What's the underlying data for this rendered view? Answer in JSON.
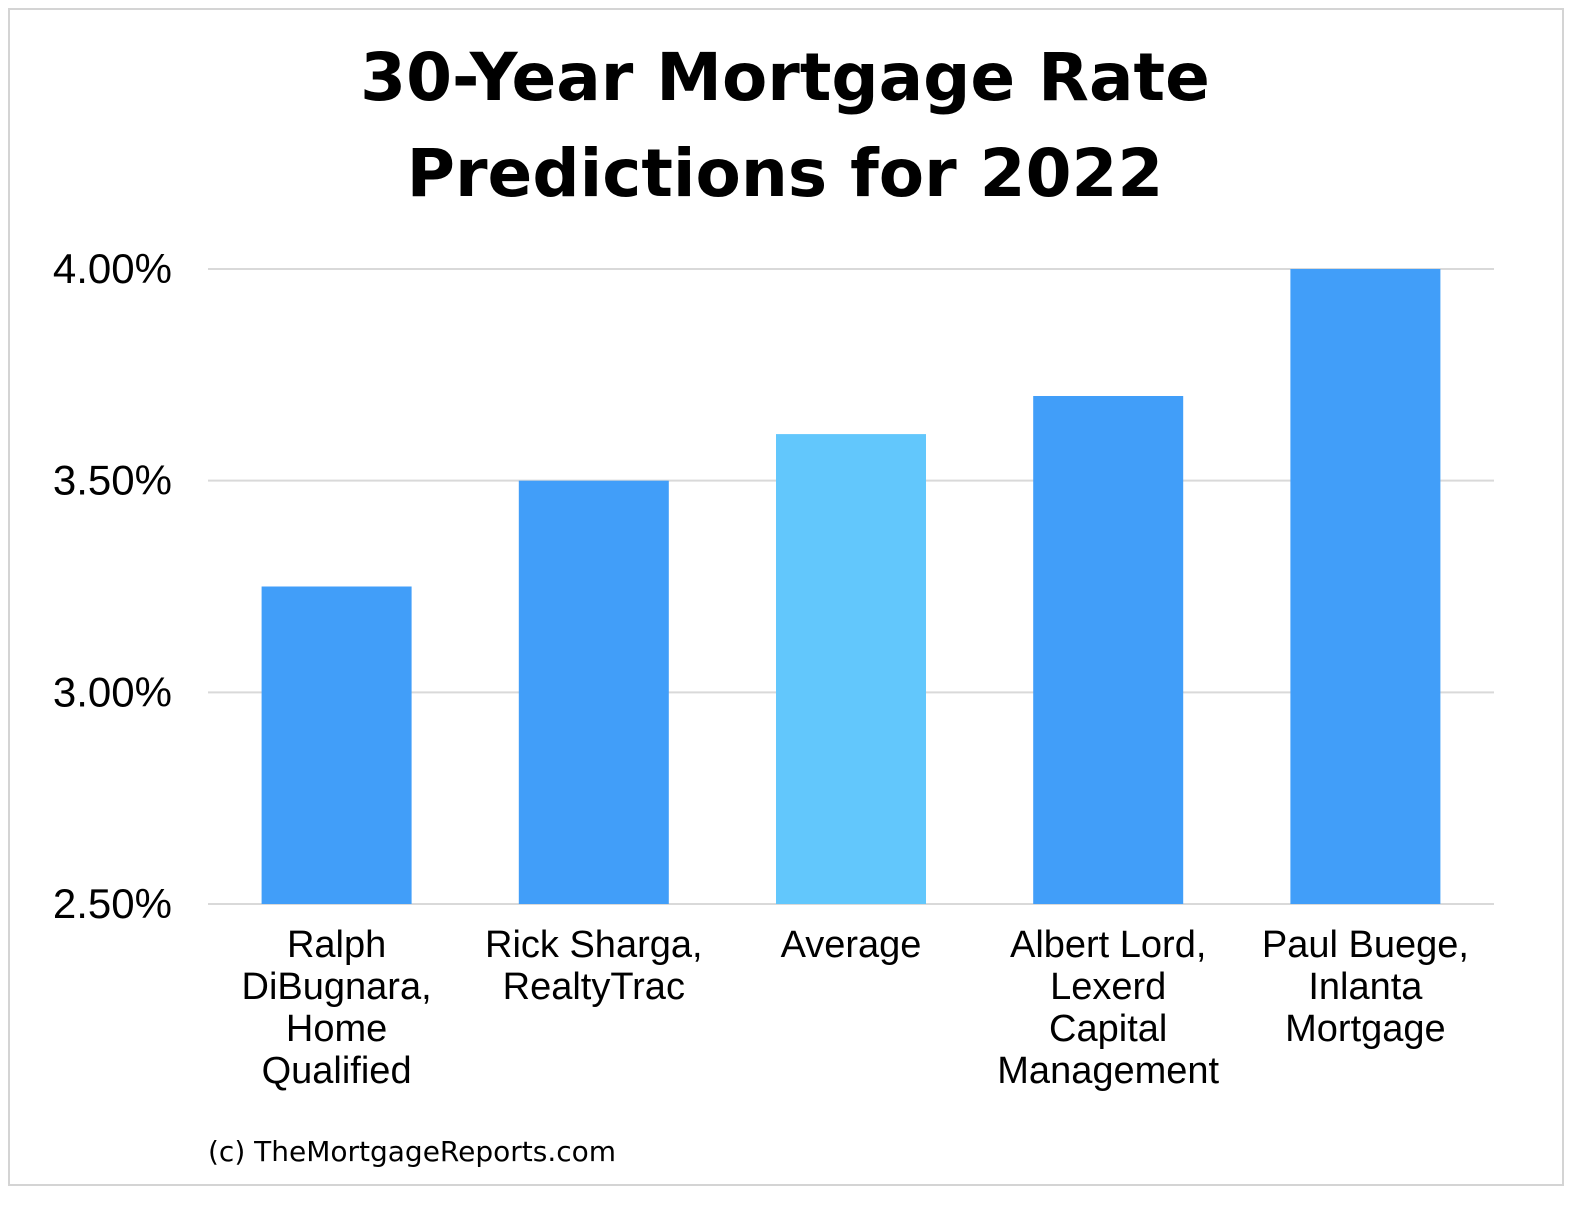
{
  "chart_data": {
    "type": "bar",
    "title_lines": [
      "30-Year Mortgage Rate",
      "Predictions for 2022"
    ],
    "categories": [
      [
        "Ralph",
        "DiBugnara,",
        "Home",
        "Qualified"
      ],
      [
        "Rick Sharga,",
        "RealtyTrac"
      ],
      [
        "Average"
      ],
      [
        "Albert Lord,",
        "Lexerd",
        "Capital",
        "Management"
      ],
      [
        "Paul Buege,",
        "Inlanta",
        "Mortgage"
      ]
    ],
    "values": [
      3.25,
      3.5,
      3.61,
      3.7,
      4.0
    ],
    "bar_colors": [
      "#419ef9",
      "#419ef9",
      "#62c7fc",
      "#419ef9",
      "#419ef9"
    ],
    "ylim": [
      2.5,
      4.0
    ],
    "yticks": [
      2.5,
      3.0,
      3.5,
      4.0
    ],
    "ytick_labels": [
      "2.50%",
      "3.00%",
      "3.50%",
      "4.00%"
    ],
    "grid": true,
    "gridline_color": "#d9d9d9",
    "legend": "none",
    "xlabel": "",
    "ylabel": ""
  },
  "footer": {
    "credit": "(c) TheMortgageReports.com"
  }
}
